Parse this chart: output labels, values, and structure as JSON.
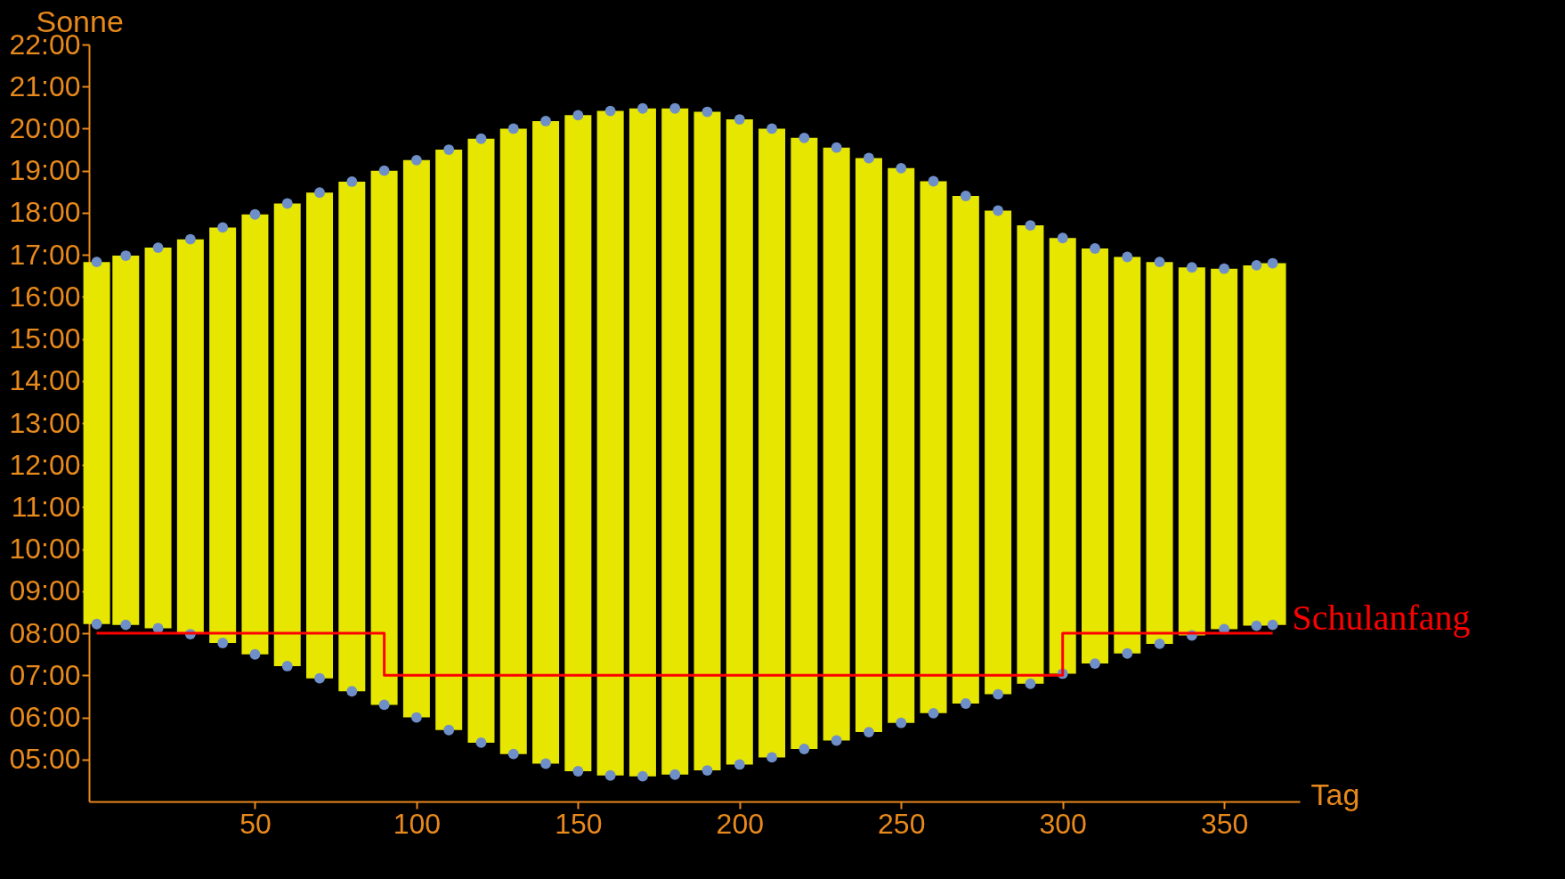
{
  "chart_data": {
    "type": "bar",
    "xlabel": "Tag",
    "ylabel": "Sonne",
    "x": [
      1,
      10,
      20,
      30,
      40,
      50,
      60,
      70,
      80,
      90,
      100,
      110,
      120,
      130,
      140,
      150,
      160,
      170,
      180,
      190,
      200,
      210,
      220,
      230,
      240,
      250,
      260,
      270,
      280,
      290,
      300,
      310,
      320,
      330,
      340,
      350,
      360,
      365
    ],
    "series": [
      {
        "color": "#e6e600",
        "base": [
          8.22,
          8.2,
          8.12,
          7.98,
          7.77,
          7.5,
          7.22,
          6.93,
          6.62,
          6.3,
          6.0,
          5.7,
          5.4,
          5.13,
          4.9,
          4.72,
          4.62,
          4.6,
          4.64,
          4.74,
          4.88,
          5.05,
          5.25,
          5.45,
          5.65,
          5.87,
          6.1,
          6.33,
          6.55,
          6.8,
          7.04,
          7.28,
          7.52,
          7.75,
          7.95,
          8.1,
          8.18,
          8.2
        ],
        "values": [
          8.61,
          8.78,
          9.05,
          9.39,
          9.88,
          10.46,
          11.0,
          11.55,
          12.12,
          12.7,
          13.25,
          13.8,
          14.36,
          14.87,
          15.28,
          15.6,
          15.8,
          15.88,
          15.84,
          15.66,
          15.34,
          14.95,
          14.53,
          14.1,
          13.65,
          13.19,
          12.65,
          12.07,
          11.5,
          10.9,
          10.36,
          9.87,
          9.43,
          9.08,
          8.75,
          8.57,
          8.57,
          8.6
        ]
      },
      {
        "type": "scatter",
        "color": "#6f8fc9",
        "values": [
          16.83,
          16.98,
          17.17,
          17.37,
          17.65,
          17.96,
          18.22,
          18.48,
          18.74,
          19.0,
          19.25,
          19.5,
          19.76,
          20.0,
          20.18,
          20.32,
          20.42,
          20.48,
          20.48,
          20.4,
          20.22,
          20.0,
          19.78,
          19.55,
          19.3,
          19.06,
          18.75,
          18.4,
          18.05,
          17.7,
          17.4,
          17.15,
          16.95,
          16.83,
          16.7,
          16.67,
          16.75,
          16.8
        ]
      },
      {
        "type": "scatter",
        "color": "#6f8fc9",
        "values": [
          8.22,
          8.2,
          8.12,
          7.98,
          7.77,
          7.5,
          7.22,
          6.93,
          6.62,
          6.3,
          6.0,
          5.7,
          5.4,
          5.13,
          4.9,
          4.72,
          4.62,
          4.6,
          4.64,
          4.74,
          4.88,
          5.05,
          5.25,
          5.45,
          5.65,
          5.87,
          6.1,
          6.33,
          6.55,
          6.8,
          7.04,
          7.28,
          7.52,
          7.75,
          7.95,
          8.1,
          8.18,
          8.2
        ]
      },
      {
        "type": "step",
        "name": "Schulanfang",
        "color": "#ff0000",
        "x": [
          1,
          90,
          300,
          365
        ],
        "values": [
          8,
          7,
          8,
          8
        ]
      }
    ],
    "line_style": "solid",
    "xlim": [
      0,
      372
    ],
    "xticks": [
      50,
      100,
      150,
      200,
      250,
      300,
      350
    ],
    "ylim": [
      4,
      22
    ],
    "yticks": [
      {
        "value": 5,
        "label": "05:00"
      },
      {
        "value": 6,
        "label": "06:00"
      },
      {
        "value": 7,
        "label": "07:00"
      },
      {
        "value": 8,
        "label": "08:00"
      },
      {
        "value": 9,
        "label": "09:00"
      },
      {
        "value": 10,
        "label": "10:00"
      },
      {
        "value": 11,
        "label": "11:00"
      },
      {
        "value": 12,
        "label": "12:00"
      },
      {
        "value": 13,
        "label": "13:00"
      },
      {
        "value": 14,
        "label": "14:00"
      },
      {
        "value": 15,
        "label": "15:00"
      },
      {
        "value": 16,
        "label": "16:00"
      },
      {
        "value": 17,
        "label": "17:00"
      },
      {
        "value": 18,
        "label": "18:00"
      },
      {
        "value": 19,
        "label": "19:00"
      },
      {
        "value": 20,
        "label": "20:00"
      },
      {
        "value": 21,
        "label": "21:00"
      },
      {
        "value": 22,
        "label": "22:00"
      }
    ]
  }
}
